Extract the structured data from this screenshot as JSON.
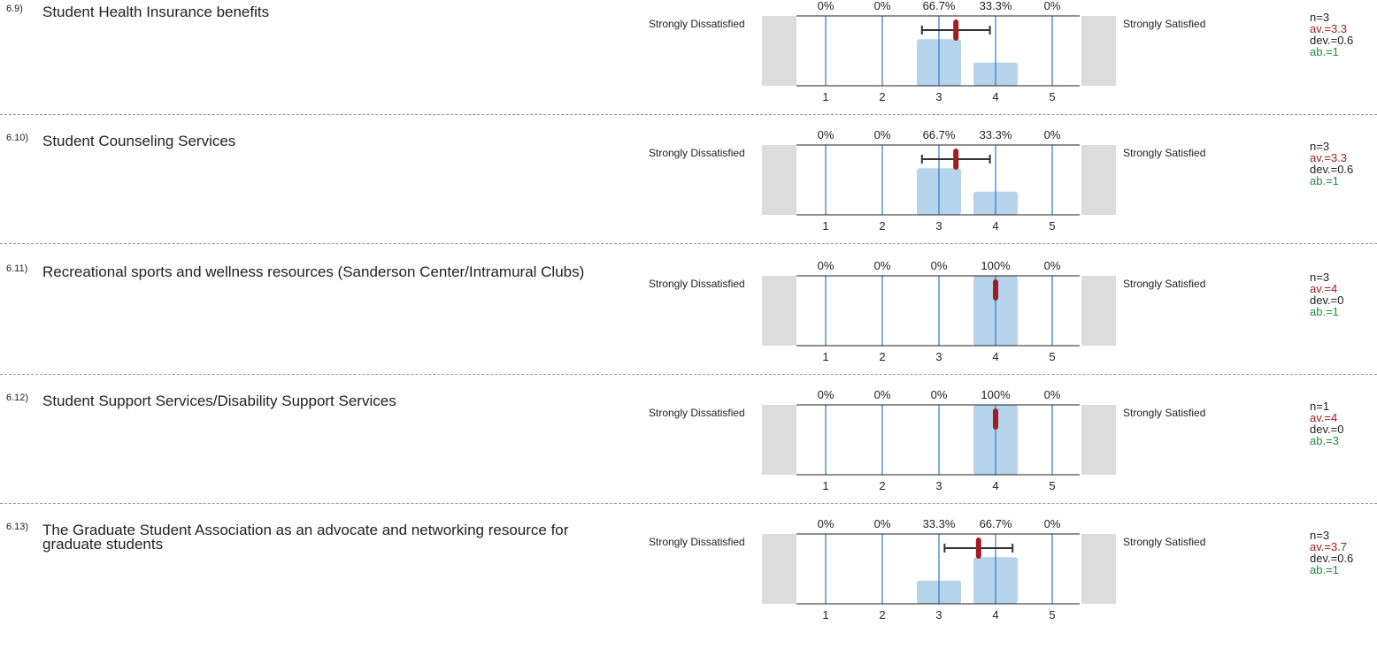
{
  "colors": {
    "bar": "#b5d3ea",
    "gridline": "#2f78c4",
    "side_box": "#dcdcdc",
    "mean_marker": "#a01e22",
    "errorbar": "#333333",
    "av_text": "#9b1c1c",
    "ab_text": "#1f8a3a"
  },
  "items": [
    {
      "number": "6.9)",
      "question": "Student Health Insurance benefits",
      "left_label": "Strongly Dissatisfied",
      "right_label": "Strongly Satisfied",
      "stats": {
        "n": "n=3",
        "av": "av.=3.3",
        "dev": "dev.=0.6",
        "ab": "ab.=1"
      },
      "percent_labels": [
        "0%",
        "0%",
        "66.7%",
        "33.3%",
        "0%"
      ],
      "scale_labels": [
        "1",
        "2",
        "3",
        "4",
        "5"
      ]
    },
    {
      "number": "6.10)",
      "question": "Student Counseling Services",
      "left_label": "Strongly Dissatisfied",
      "right_label": "Strongly Satisfied",
      "stats": {
        "n": "n=3",
        "av": "av.=3.3",
        "dev": "dev.=0.6",
        "ab": "ab.=1"
      },
      "percent_labels": [
        "0%",
        "0%",
        "66.7%",
        "33.3%",
        "0%"
      ],
      "scale_labels": [
        "1",
        "2",
        "3",
        "4",
        "5"
      ]
    },
    {
      "number": "6.11)",
      "question": "Recreational sports and wellness resources (Sanderson Center/Intramural Clubs)",
      "left_label": "Strongly Dissatisfied",
      "right_label": "Strongly Satisfied",
      "stats": {
        "n": "n=3",
        "av": "av.=4",
        "dev": "dev.=0",
        "ab": "ab.=1"
      },
      "percent_labels": [
        "0%",
        "0%",
        "0%",
        "100%",
        "0%"
      ],
      "scale_labels": [
        "1",
        "2",
        "3",
        "4",
        "5"
      ]
    },
    {
      "number": "6.12)",
      "question": "Student Support Services/Disability Support Services",
      "left_label": "Strongly Dissatisfied",
      "right_label": "Strongly Satisfied",
      "stats": {
        "n": "n=1",
        "av": "av.=4",
        "dev": "dev.=0",
        "ab": "ab.=3"
      },
      "percent_labels": [
        "0%",
        "0%",
        "0%",
        "100%",
        "0%"
      ],
      "scale_labels": [
        "1",
        "2",
        "3",
        "4",
        "5"
      ]
    },
    {
      "number": "6.13)",
      "question": "The Graduate Student Association as an advocate and networking resource for graduate students",
      "left_label": "Strongly Dissatisfied",
      "right_label": "Strongly Satisfied",
      "stats": {
        "n": "n=3",
        "av": "av.=3.7",
        "dev": "dev.=0.6",
        "ab": "ab.=1"
      },
      "percent_labels": [
        "0%",
        "0%",
        "33.3%",
        "66.7%",
        "0%"
      ],
      "scale_labels": [
        "1",
        "2",
        "3",
        "4",
        "5"
      ]
    }
  ],
  "chart_data": [
    {
      "type": "bar",
      "categories": [
        "1",
        "2",
        "3",
        "4",
        "5"
      ],
      "values": [
        0,
        0,
        66.7,
        33.3,
        0
      ],
      "mean": 3.3,
      "deviation": 0.6,
      "ylim": [
        0,
        100
      ]
    },
    {
      "type": "bar",
      "categories": [
        "1",
        "2",
        "3",
        "4",
        "5"
      ],
      "values": [
        0,
        0,
        66.7,
        33.3,
        0
      ],
      "mean": 3.3,
      "deviation": 0.6,
      "ylim": [
        0,
        100
      ]
    },
    {
      "type": "bar",
      "categories": [
        "1",
        "2",
        "3",
        "4",
        "5"
      ],
      "values": [
        0,
        0,
        0,
        100,
        0
      ],
      "mean": 4,
      "deviation": 0,
      "ylim": [
        0,
        100
      ]
    },
    {
      "type": "bar",
      "categories": [
        "1",
        "2",
        "3",
        "4",
        "5"
      ],
      "values": [
        0,
        0,
        0,
        100,
        0
      ],
      "mean": 4,
      "deviation": 0,
      "ylim": [
        0,
        100
      ]
    },
    {
      "type": "bar",
      "categories": [
        "1",
        "2",
        "3",
        "4",
        "5"
      ],
      "values": [
        0,
        0,
        33.3,
        66.7,
        0
      ],
      "mean": 3.7,
      "deviation": 0.6,
      "ylim": [
        0,
        100
      ]
    }
  ]
}
